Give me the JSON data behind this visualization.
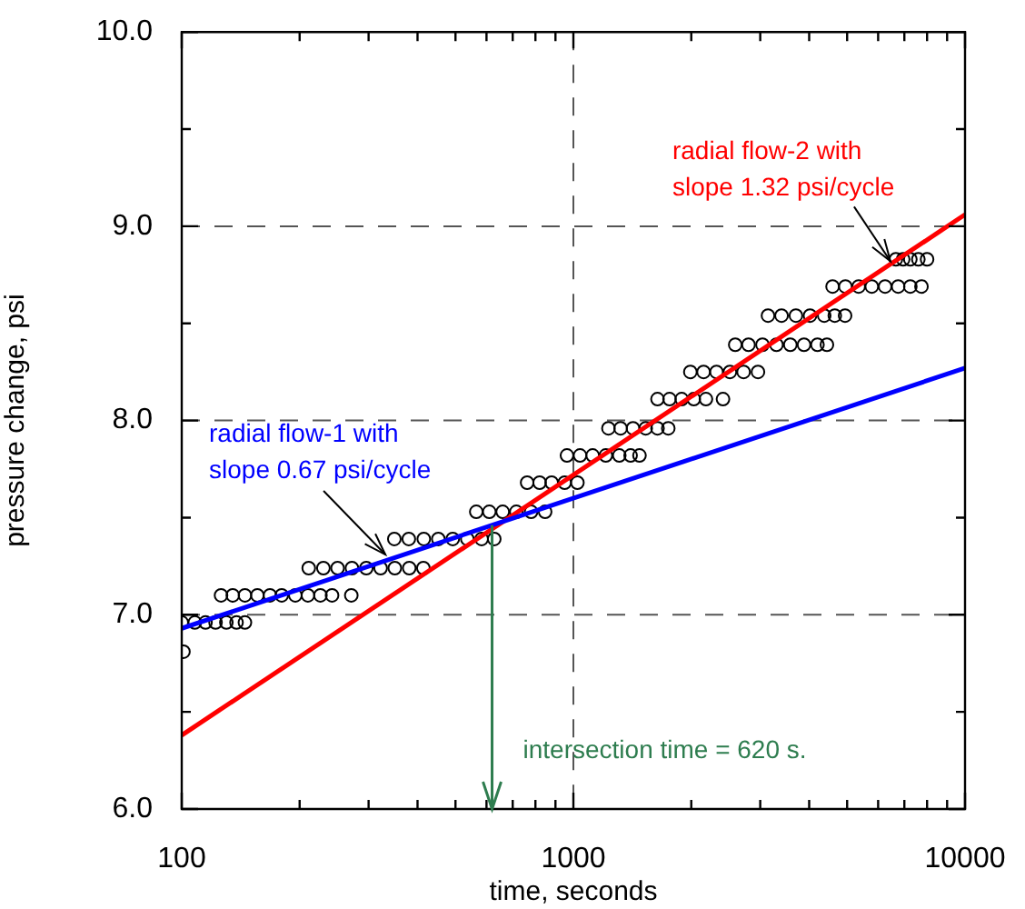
{
  "chart_data": {
    "type": "scatter",
    "xlabel": "time, seconds",
    "ylabel": "pressure change, psi",
    "log": "x",
    "grid": true,
    "legend": false,
    "marker": "circle",
    "xlim": [
      100,
      10000
    ],
    "ylim": [
      6,
      10
    ],
    "xticks": [
      100,
      {
        "value": 200,
        "label": null
      },
      {
        "value": 300,
        "label": null
      },
      {
        "value": 400,
        "label": null
      },
      {
        "value": 500,
        "label": null
      },
      {
        "value": 600,
        "label": null
      },
      {
        "value": 700,
        "label": null
      },
      {
        "value": 800,
        "label": null
      },
      {
        "value": 900,
        "label": null
      },
      1000,
      {
        "value": 2000,
        "label": null
      },
      {
        "value": 3000,
        "label": null
      },
      {
        "value": 4000,
        "label": null
      },
      {
        "value": 5000,
        "label": null
      },
      {
        "value": 6000,
        "label": null
      },
      {
        "value": 7000,
        "label": null
      },
      {
        "value": 8000,
        "label": null
      },
      {
        "value": 9000,
        "label": null
      },
      10000
    ],
    "yticks": [
      {
        "value": 6,
        "label": "6.0"
      },
      {
        "value": 6.5,
        "label": null
      },
      {
        "value": 7,
        "label": "7.0"
      },
      {
        "value": 7.5,
        "label": null
      },
      {
        "value": 8,
        "label": "8.0"
      },
      {
        "value": 8.5,
        "label": null
      },
      {
        "value": 9,
        "label": "9.0"
      },
      {
        "value": 9.5,
        "label": null
      },
      {
        "value": 10,
        "label": "10.0"
      }
    ],
    "series": [
      {
        "type": "line",
        "marker": "none",
        "color": "#0000ff",
        "x": [
          100,
          10000
        ],
        "values": [
          6.93,
          8.27
        ]
      },
      {
        "type": "line",
        "marker": "none",
        "color": "#ff0000",
        "x": [
          100,
          10000
        ],
        "values": [
          6.38,
          9.06
        ]
      },
      {
        "color": "#000000",
        "x": [
          100,
          108,
          115,
          122,
          130,
          138,
          145,
          101,
          126,
          135,
          145,
          156,
          168,
          180,
          195,
          210,
          226,
          242,
          271,
          211,
          230,
          250,
          272,
          296,
          322,
          350,
          381,
          414,
          349,
          380,
          415,
          452,
          492,
          536,
          583,
          628,
          565,
          610,
          660,
          715,
          780,
          847,
          762,
          820,
          880,
          950,
          1024,
          963,
          1040,
          1120,
          1210,
          1310,
          1400,
          1475,
          1229,
          1320,
          1420,
          1530,
          1640,
          1747,
          1640,
          1760,
          1890,
          2030,
          2180,
          2410,
          1989,
          2150,
          2320,
          2510,
          2720,
          2960,
          2590,
          2800,
          3040,
          3300,
          3580,
          3880,
          4200,
          4440,
          3140,
          3400,
          3700,
          4020,
          4370,
          4650,
          4940,
          4590,
          4950,
          5350,
          5780,
          6250,
          6750,
          7250,
          7740,
          6660,
          6950,
          7250,
          7600,
          8000
        ],
        "values": [
          6.96,
          6.96,
          6.96,
          6.96,
          6.96,
          6.96,
          6.96,
          6.81,
          7.1,
          7.1,
          7.1,
          7.1,
          7.1,
          7.1,
          7.1,
          7.1,
          7.1,
          7.1,
          7.1,
          7.24,
          7.24,
          7.24,
          7.24,
          7.24,
          7.24,
          7.24,
          7.24,
          7.24,
          7.39,
          7.39,
          7.39,
          7.39,
          7.39,
          7.39,
          7.39,
          7.39,
          7.53,
          7.53,
          7.53,
          7.53,
          7.53,
          7.53,
          7.68,
          7.68,
          7.68,
          7.68,
          7.68,
          7.82,
          7.82,
          7.82,
          7.82,
          7.82,
          7.82,
          7.82,
          7.96,
          7.96,
          7.96,
          7.96,
          7.96,
          7.96,
          8.11,
          8.11,
          8.11,
          8.11,
          8.11,
          8.11,
          8.25,
          8.25,
          8.25,
          8.25,
          8.25,
          8.25,
          8.39,
          8.39,
          8.39,
          8.39,
          8.39,
          8.39,
          8.39,
          8.39,
          8.54,
          8.54,
          8.54,
          8.54,
          8.54,
          8.54,
          8.54,
          8.69,
          8.69,
          8.69,
          8.69,
          8.69,
          8.69,
          8.69,
          8.69,
          8.83,
          8.83,
          8.83,
          8.83,
          8.83
        ]
      }
    ],
    "annotations": [
      {
        "text": "radial flow-1 with\nslope 0.67 psi/cycle",
        "x": 331,
        "y": 7.31
      },
      {
        "text": "radial flow-2 with\nslope 1.32 psi/cycle",
        "x": 6450,
        "y": 8.82
      }
    ],
    "ref_lines": [
      {
        "axis": "x",
        "value": 620,
        "label": "intersection time = 620 s.",
        "color": "#2e7d4f"
      }
    ]
  }
}
